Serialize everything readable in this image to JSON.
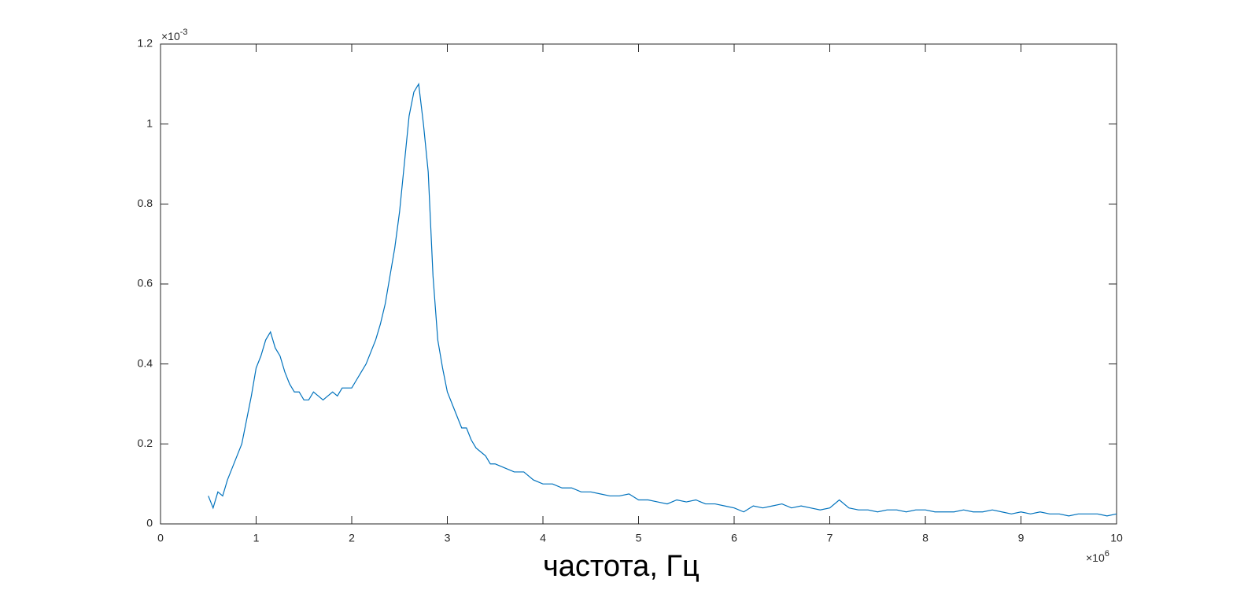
{
  "chart_data": {
    "type": "line",
    "xlabel": "частота, Гц",
    "x_multiplier": {
      "base": "×10",
      "exponent": "6"
    },
    "y_multiplier": {
      "base": "×10",
      "exponent": "-3"
    },
    "x": [
      0.5,
      0.55,
      0.6,
      0.65,
      0.7,
      0.75,
      0.8,
      0.85,
      0.9,
      0.95,
      1.0,
      1.05,
      1.1,
      1.15,
      1.2,
      1.25,
      1.3,
      1.35,
      1.4,
      1.45,
      1.5,
      1.55,
      1.6,
      1.65,
      1.7,
      1.75,
      1.8,
      1.85,
      1.9,
      1.95,
      2.0,
      2.05,
      2.1,
      2.15,
      2.2,
      2.25,
      2.3,
      2.35,
      2.4,
      2.45,
      2.5,
      2.55,
      2.6,
      2.65,
      2.7,
      2.75,
      2.8,
      2.85,
      2.9,
      2.95,
      3.0,
      3.05,
      3.1,
      3.15,
      3.2,
      3.25,
      3.3,
      3.35,
      3.4,
      3.45,
      3.5,
      3.6,
      3.7,
      3.8,
      3.9,
      4.0,
      4.1,
      4.2,
      4.3,
      4.4,
      4.5,
      4.6,
      4.7,
      4.8,
      4.9,
      5.0,
      5.1,
      5.2,
      5.3,
      5.4,
      5.5,
      5.6,
      5.7,
      5.8,
      5.9,
      6.0,
      6.1,
      6.2,
      6.3,
      6.4,
      6.5,
      6.6,
      6.7,
      6.8,
      6.9,
      7.0,
      7.1,
      7.2,
      7.3,
      7.4,
      7.5,
      7.6,
      7.7,
      7.8,
      7.9,
      8.0,
      8.1,
      8.2,
      8.3,
      8.4,
      8.5,
      8.6,
      8.7,
      8.8,
      8.9,
      9.0,
      9.1,
      9.2,
      9.3,
      9.4,
      9.5,
      9.6,
      9.7,
      9.8,
      9.9,
      10.0
    ],
    "series": [
      {
        "color": "#0072bd",
        "values": [
          0.07,
          0.04,
          0.08,
          0.07,
          0.11,
          0.14,
          0.17,
          0.2,
          0.26,
          0.32,
          0.39,
          0.42,
          0.46,
          0.48,
          0.44,
          0.42,
          0.38,
          0.35,
          0.33,
          0.33,
          0.31,
          0.31,
          0.33,
          0.32,
          0.31,
          0.32,
          0.33,
          0.32,
          0.34,
          0.34,
          0.34,
          0.36,
          0.38,
          0.4,
          0.43,
          0.46,
          0.5,
          0.55,
          0.62,
          0.69,
          0.78,
          0.9,
          1.02,
          1.08,
          1.1,
          1.0,
          0.88,
          0.62,
          0.46,
          0.39,
          0.33,
          0.3,
          0.27,
          0.24,
          0.24,
          0.21,
          0.19,
          0.18,
          0.17,
          0.15,
          0.15,
          0.14,
          0.13,
          0.13,
          0.11,
          0.1,
          0.1,
          0.09,
          0.09,
          0.08,
          0.08,
          0.075,
          0.07,
          0.07,
          0.075,
          0.06,
          0.06,
          0.055,
          0.05,
          0.06,
          0.055,
          0.06,
          0.05,
          0.05,
          0.045,
          0.04,
          0.03,
          0.045,
          0.04,
          0.045,
          0.05,
          0.04,
          0.045,
          0.04,
          0.035,
          0.04,
          0.06,
          0.04,
          0.035,
          0.035,
          0.03,
          0.035,
          0.035,
          0.03,
          0.035,
          0.035,
          0.03,
          0.03,
          0.03,
          0.035,
          0.03,
          0.03,
          0.035,
          0.03,
          0.025,
          0.03,
          0.025,
          0.03,
          0.025,
          0.025,
          0.02,
          0.025,
          0.025,
          0.025,
          0.02,
          0.025
        ]
      }
    ],
    "xlim": [
      0,
      10
    ],
    "xticks": [
      0,
      1,
      2,
      3,
      4,
      5,
      6,
      7,
      8,
      9,
      10
    ],
    "ylim": [
      0,
      1.2
    ],
    "yticks": [
      0,
      0.2,
      0.4,
      0.6,
      0.8,
      1,
      1.2
    ],
    "grid": false,
    "box": true
  }
}
